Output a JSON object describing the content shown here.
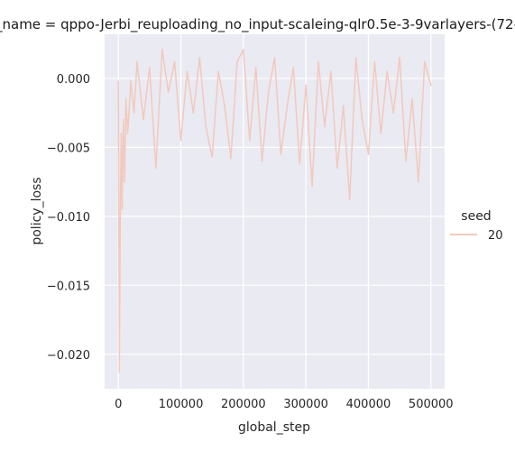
{
  "chart_data": {
    "type": "line",
    "title": "_name = qppo-Jerbi_reuploading_no_input-scaleing-qlr0.5e-3-9varlayers-(72-",
    "xlabel": "global_step",
    "ylabel": "policy_loss",
    "xlim": [
      -22000,
      522000
    ],
    "ylim": [
      -0.0225,
      0.0032
    ],
    "xticks": [
      0,
      100000,
      200000,
      300000,
      400000,
      500000
    ],
    "xtick_labels": [
      "0",
      "100000",
      "200000",
      "300000",
      "400000",
      "500000"
    ],
    "yticks": [
      0.0,
      -0.005,
      -0.01,
      -0.015,
      -0.02
    ],
    "ytick_labels": [
      "0.000",
      "−0.005",
      "−0.010",
      "−0.015",
      "−0.020"
    ],
    "grid": true,
    "legend": {
      "title": "seed",
      "placement": "right",
      "entries": [
        "20"
      ]
    },
    "series": [
      {
        "name": "20",
        "color": "#f2c9bd",
        "x": [
          0,
          1500,
          3000,
          4500,
          6000,
          8000,
          10000,
          12000,
          15000,
          20000,
          25000,
          30000,
          40000,
          50000,
          60000,
          70000,
          80000,
          90000,
          100000,
          110000,
          120000,
          130000,
          140000,
          150000,
          160000,
          170000,
          180000,
          190000,
          200000,
          210000,
          220000,
          230000,
          240000,
          250000,
          260000,
          270000,
          280000,
          290000,
          300000,
          310000,
          320000,
          330000,
          340000,
          350000,
          360000,
          370000,
          380000,
          390000,
          400000,
          410000,
          420000,
          430000,
          440000,
          450000,
          460000,
          470000,
          480000,
          490000,
          500000
        ],
        "y": [
          -0.0002,
          -0.0213,
          -0.0105,
          -0.004,
          -0.0095,
          -0.003,
          -0.0075,
          -0.0015,
          -0.004,
          -0.0002,
          -0.0025,
          0.0012,
          -0.003,
          0.0008,
          -0.0065,
          0.0021,
          -0.001,
          0.0012,
          -0.0045,
          0.0005,
          -0.0025,
          0.0015,
          -0.0035,
          -0.0057,
          0.0005,
          -0.002,
          -0.0058,
          0.0012,
          0.0021,
          -0.0045,
          0.0008,
          -0.006,
          -0.001,
          0.0015,
          -0.0055,
          -0.002,
          0.0008,
          -0.0062,
          -0.0005,
          -0.0078,
          0.0012,
          -0.0035,
          0.0005,
          -0.0065,
          -0.002,
          -0.0088,
          0.0015,
          -0.003,
          -0.0055,
          0.0012,
          -0.004,
          0.0005,
          -0.0025,
          0.0015,
          -0.006,
          -0.0015,
          -0.0075,
          0.0012,
          -0.0005
        ]
      }
    ]
  }
}
